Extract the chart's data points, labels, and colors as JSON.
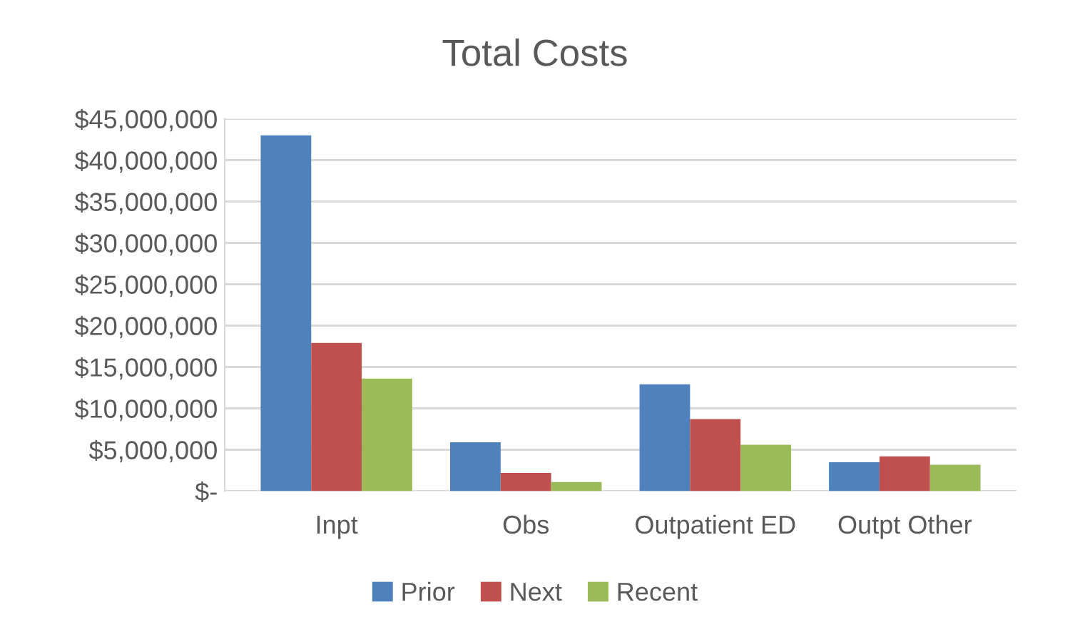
{
  "chart_data": {
    "type": "bar",
    "title": "Total Costs",
    "categories": [
      "Inpt",
      "Obs",
      "Outpatient ED",
      "Outpt Other"
    ],
    "series": [
      {
        "name": "Prior",
        "color": "#4f81bd",
        "values": [
          43000000,
          5900000,
          12900000,
          3500000
        ]
      },
      {
        "name": "Next",
        "color": "#c0504d",
        "values": [
          17900000,
          2200000,
          8700000,
          4200000
        ]
      },
      {
        "name": "Recent",
        "color": "#9bbb59",
        "values": [
          13600000,
          1100000,
          5600000,
          3200000
        ]
      }
    ],
    "ylim": [
      0,
      45000000
    ],
    "yticks": [
      {
        "value": 0,
        "label": "$-"
      },
      {
        "value": 5000000,
        "label": "$5,000,000"
      },
      {
        "value": 10000000,
        "label": "$10,000,000"
      },
      {
        "value": 15000000,
        "label": "$15,000,000"
      },
      {
        "value": 20000000,
        "label": "$20,000,000"
      },
      {
        "value": 25000000,
        "label": "$25,000,000"
      },
      {
        "value": 30000000,
        "label": "$30,000,000"
      },
      {
        "value": 35000000,
        "label": "$35,000,000"
      },
      {
        "value": 40000000,
        "label": "$40,000,000"
      },
      {
        "value": 45000000,
        "label": "$45,000,000"
      }
    ],
    "grid": "y",
    "legend": "bottom"
  }
}
